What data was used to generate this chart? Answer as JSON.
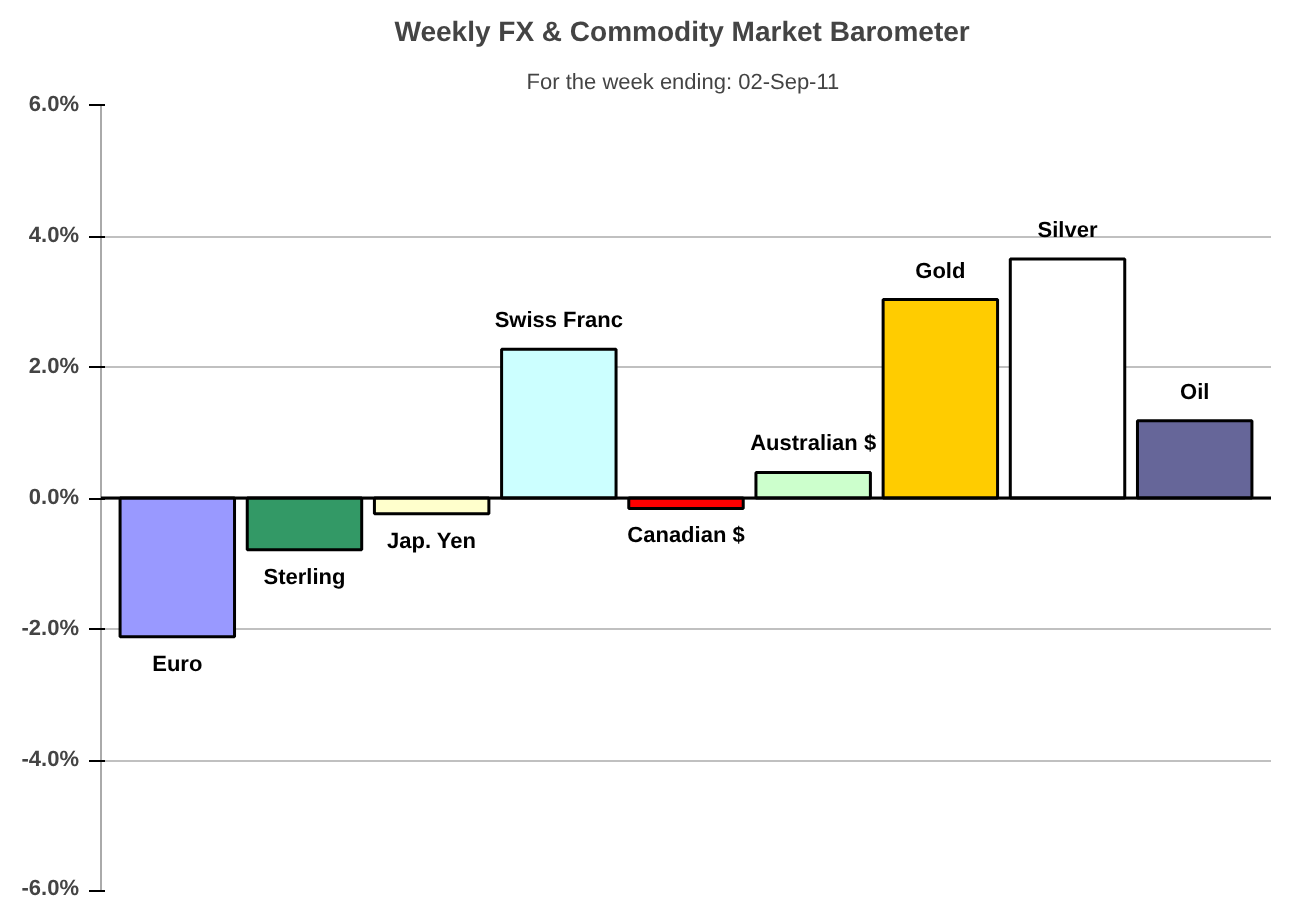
{
  "chart_data": {
    "type": "bar",
    "title": "Weekly FX & Commodity  Market Barometer",
    "subtitle": "For the week ending:  02-Sep-11",
    "categories": [
      "Euro",
      "Sterling",
      "Jap. Yen",
      "Swiss Franc",
      "Canadian $",
      "Australian $",
      "Gold",
      "Silver",
      "Oil"
    ],
    "values": [
      -2.12,
      -0.79,
      -0.24,
      2.27,
      -0.16,
      0.39,
      3.03,
      3.65,
      1.18
    ],
    "colors": [
      "#9999ff",
      "#339966",
      "#ffffcc",
      "#ccffff",
      "#ff0000",
      "#ccffcc",
      "#ffcc00",
      "#ffffff",
      "#666699"
    ],
    "ylim": [
      -6,
      6
    ],
    "yticks": [
      {
        "value": -6,
        "label": "-6.0%"
      },
      {
        "value": -4,
        "label": "-4.0%"
      },
      {
        "value": -2,
        "label": "-2.0%"
      },
      {
        "value": 0,
        "label": "0.0%"
      },
      {
        "value": 2,
        "label": "2.0%"
      },
      {
        "value": 4,
        "label": "4.0%"
      },
      {
        "value": 6,
        "label": "6.0%"
      }
    ],
    "grid": "y",
    "tick_labels": "y"
  }
}
